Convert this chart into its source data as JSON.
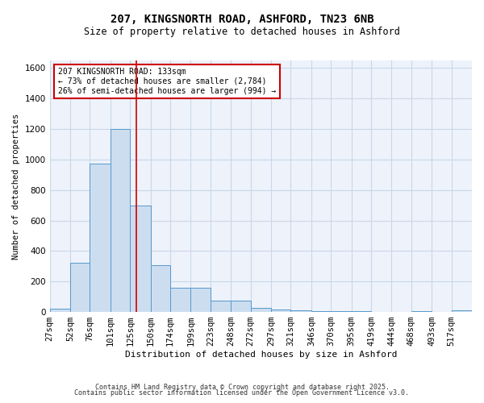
{
  "title_line1": "207, KINGSNORTH ROAD, ASHFORD, TN23 6NB",
  "title_line2": "Size of property relative to detached houses in Ashford",
  "xlabel": "Distribution of detached houses by size in Ashford",
  "ylabel": "Number of detached properties",
  "bin_labels": [
    "27sqm",
    "52sqm",
    "76sqm",
    "101sqm",
    "125sqm",
    "150sqm",
    "174sqm",
    "199sqm",
    "223sqm",
    "248sqm",
    "272sqm",
    "297sqm",
    "321sqm",
    "346sqm",
    "370sqm",
    "395sqm",
    "419sqm",
    "444sqm",
    "468sqm",
    "493sqm",
    "517sqm"
  ],
  "bin_edges": [
    27,
    52,
    76,
    101,
    125,
    150,
    174,
    199,
    223,
    248,
    272,
    297,
    321,
    346,
    370,
    395,
    419,
    444,
    468,
    493,
    517,
    542
  ],
  "bar_heights": [
    20,
    325,
    975,
    1200,
    700,
    305,
    160,
    160,
    75,
    75,
    25,
    15,
    10,
    5,
    5,
    5,
    3,
    3,
    5,
    3,
    10
  ],
  "bar_color": "#ccddf0",
  "bar_edge_color": "#5599cc",
  "grid_color": "#c8d8e8",
  "bg_color": "#eef2fa",
  "red_line_x": 133,
  "red_line_color": "#cc0000",
  "annotation_line1": "207 KINGSNORTH ROAD: 133sqm",
  "annotation_line2": "← 73% of detached houses are smaller (2,784)",
  "annotation_line3": "26% of semi-detached houses are larger (994) →",
  "annotation_box_color": "#ffffff",
  "annotation_box_edge": "#cc0000",
  "ylim": [
    0,
    1650
  ],
  "yticks": [
    0,
    200,
    400,
    600,
    800,
    1000,
    1200,
    1400,
    1600
  ],
  "footer_line1": "Contains HM Land Registry data © Crown copyright and database right 2025.",
  "footer_line2": "Contains public sector information licensed under the Open Government Licence v3.0."
}
